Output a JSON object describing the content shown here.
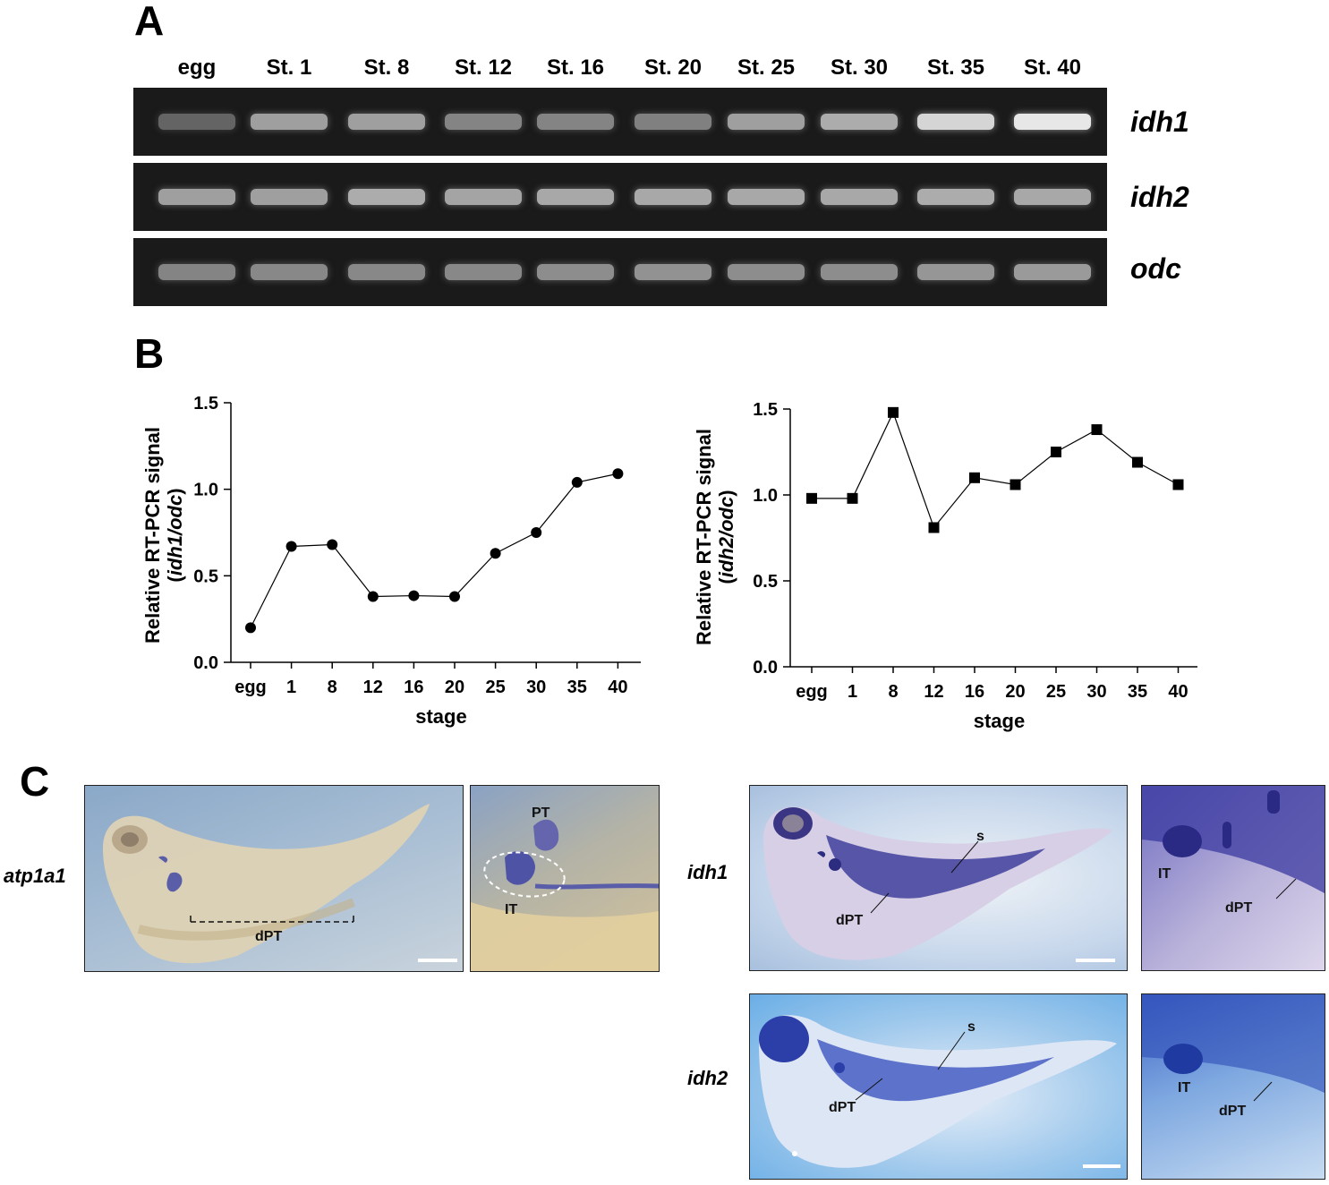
{
  "panel_a": {
    "letter": "A",
    "lanes": [
      "egg",
      "St. 1",
      "St. 8",
      "St. 12",
      "St. 16",
      "St. 20",
      "St. 25",
      "St. 30",
      "St. 35",
      "St. 40"
    ],
    "genes": [
      {
        "name": "idh1",
        "intensity": [
          0.22,
          0.55,
          0.55,
          0.4,
          0.4,
          0.38,
          0.55,
          0.62,
          0.85,
          0.95
        ]
      },
      {
        "name": "idh2",
        "intensity": [
          0.55,
          0.55,
          0.62,
          0.58,
          0.6,
          0.6,
          0.6,
          0.6,
          0.62,
          0.6
        ]
      },
      {
        "name": "odc",
        "intensity": [
          0.4,
          0.42,
          0.42,
          0.42,
          0.45,
          0.48,
          0.45,
          0.45,
          0.5,
          0.52
        ]
      }
    ]
  },
  "panel_b": {
    "letter": "B"
  },
  "chart_data": [
    {
      "type": "line",
      "categories": [
        "egg",
        "1",
        "8",
        "12",
        "16",
        "20",
        "25",
        "30",
        "35",
        "40"
      ],
      "values": [
        0.2,
        0.67,
        0.68,
        0.38,
        0.385,
        0.38,
        0.63,
        0.75,
        1.04,
        1.09
      ],
      "marker": "circle",
      "xlabel": "stage",
      "ylabel_main": "Relative RT-PCR signal",
      "ylabel_sub": [
        "(",
        "idh1/odc",
        ")"
      ],
      "ylim": [
        0,
        1.5
      ],
      "yticks": [
        "0.0",
        "0.5",
        "1.0",
        "1.5"
      ]
    },
    {
      "type": "line",
      "categories": [
        "egg",
        "1",
        "8",
        "12",
        "16",
        "20",
        "25",
        "30",
        "35",
        "40"
      ],
      "values": [
        0.98,
        0.98,
        1.48,
        0.81,
        1.1,
        1.06,
        1.25,
        1.38,
        1.19,
        1.06
      ],
      "marker": "square",
      "xlabel": "stage",
      "ylabel_main": "Relative RT-PCR signal",
      "ylabel_sub": [
        "(",
        "idh2/odc",
        ")"
      ],
      "ylim": [
        0,
        1.5
      ],
      "yticks": [
        "0.0",
        "0.5",
        "1.0",
        "1.5"
      ]
    }
  ],
  "panel_c": {
    "letter": "C",
    "row1_label": "atp1a1",
    "row2_label": "idh1",
    "row3_label": "idh2",
    "atp_whole": {
      "label_dpt": "dPT"
    },
    "atp_zoom": {
      "label_pt": "PT",
      "label_it": "IT"
    },
    "idh1_whole": {
      "label_s": "s",
      "label_dpt": "dPT"
    },
    "idh1_zoom": {
      "label_it": "IT",
      "label_dpt": "dPT"
    },
    "idh2_whole": {
      "label_s": "s",
      "label_dpt": "dPT"
    },
    "idh2_zoom": {
      "label_it": "IT",
      "label_dpt": "dPT"
    }
  }
}
